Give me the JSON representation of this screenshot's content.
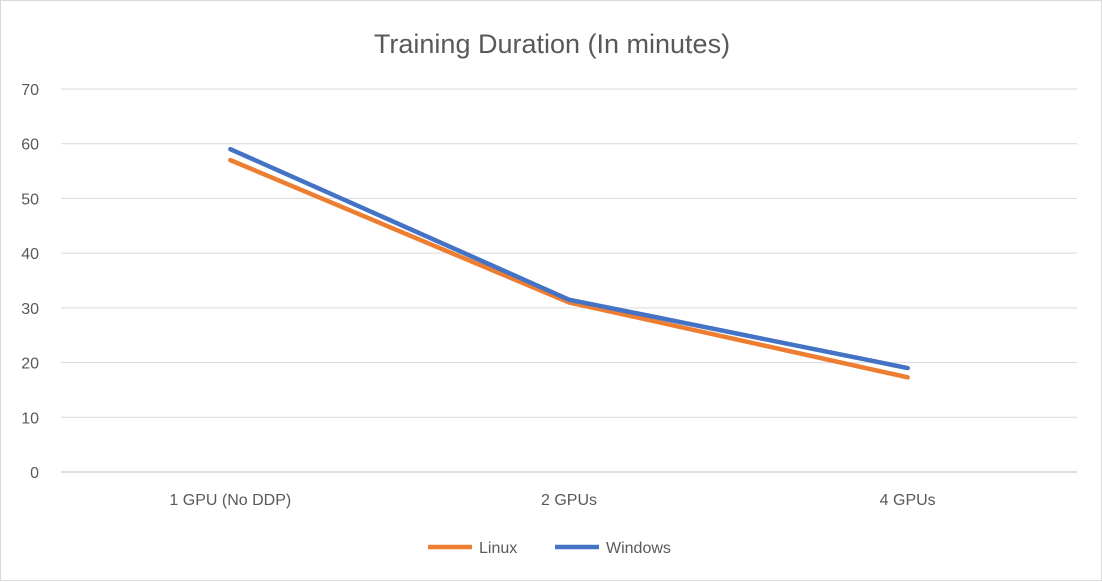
{
  "chart_data": {
    "type": "line",
    "title": "Training Duration (In minutes)",
    "categories": [
      "1 GPU (No DDP)",
      "2 GPUs",
      "4 GPUs"
    ],
    "series": [
      {
        "name": "Linux",
        "color": "#ED7D31",
        "values": [
          57,
          31,
          17.3
        ]
      },
      {
        "name": "Windows",
        "color": "#4472C4",
        "values": [
          59,
          31.5,
          19
        ]
      }
    ],
    "ylim": [
      0,
      70
    ],
    "yticks": [
      "0",
      "10",
      "20",
      "30",
      "40",
      "50",
      "60",
      "70"
    ],
    "grid": true,
    "legend_position": "bottom"
  }
}
